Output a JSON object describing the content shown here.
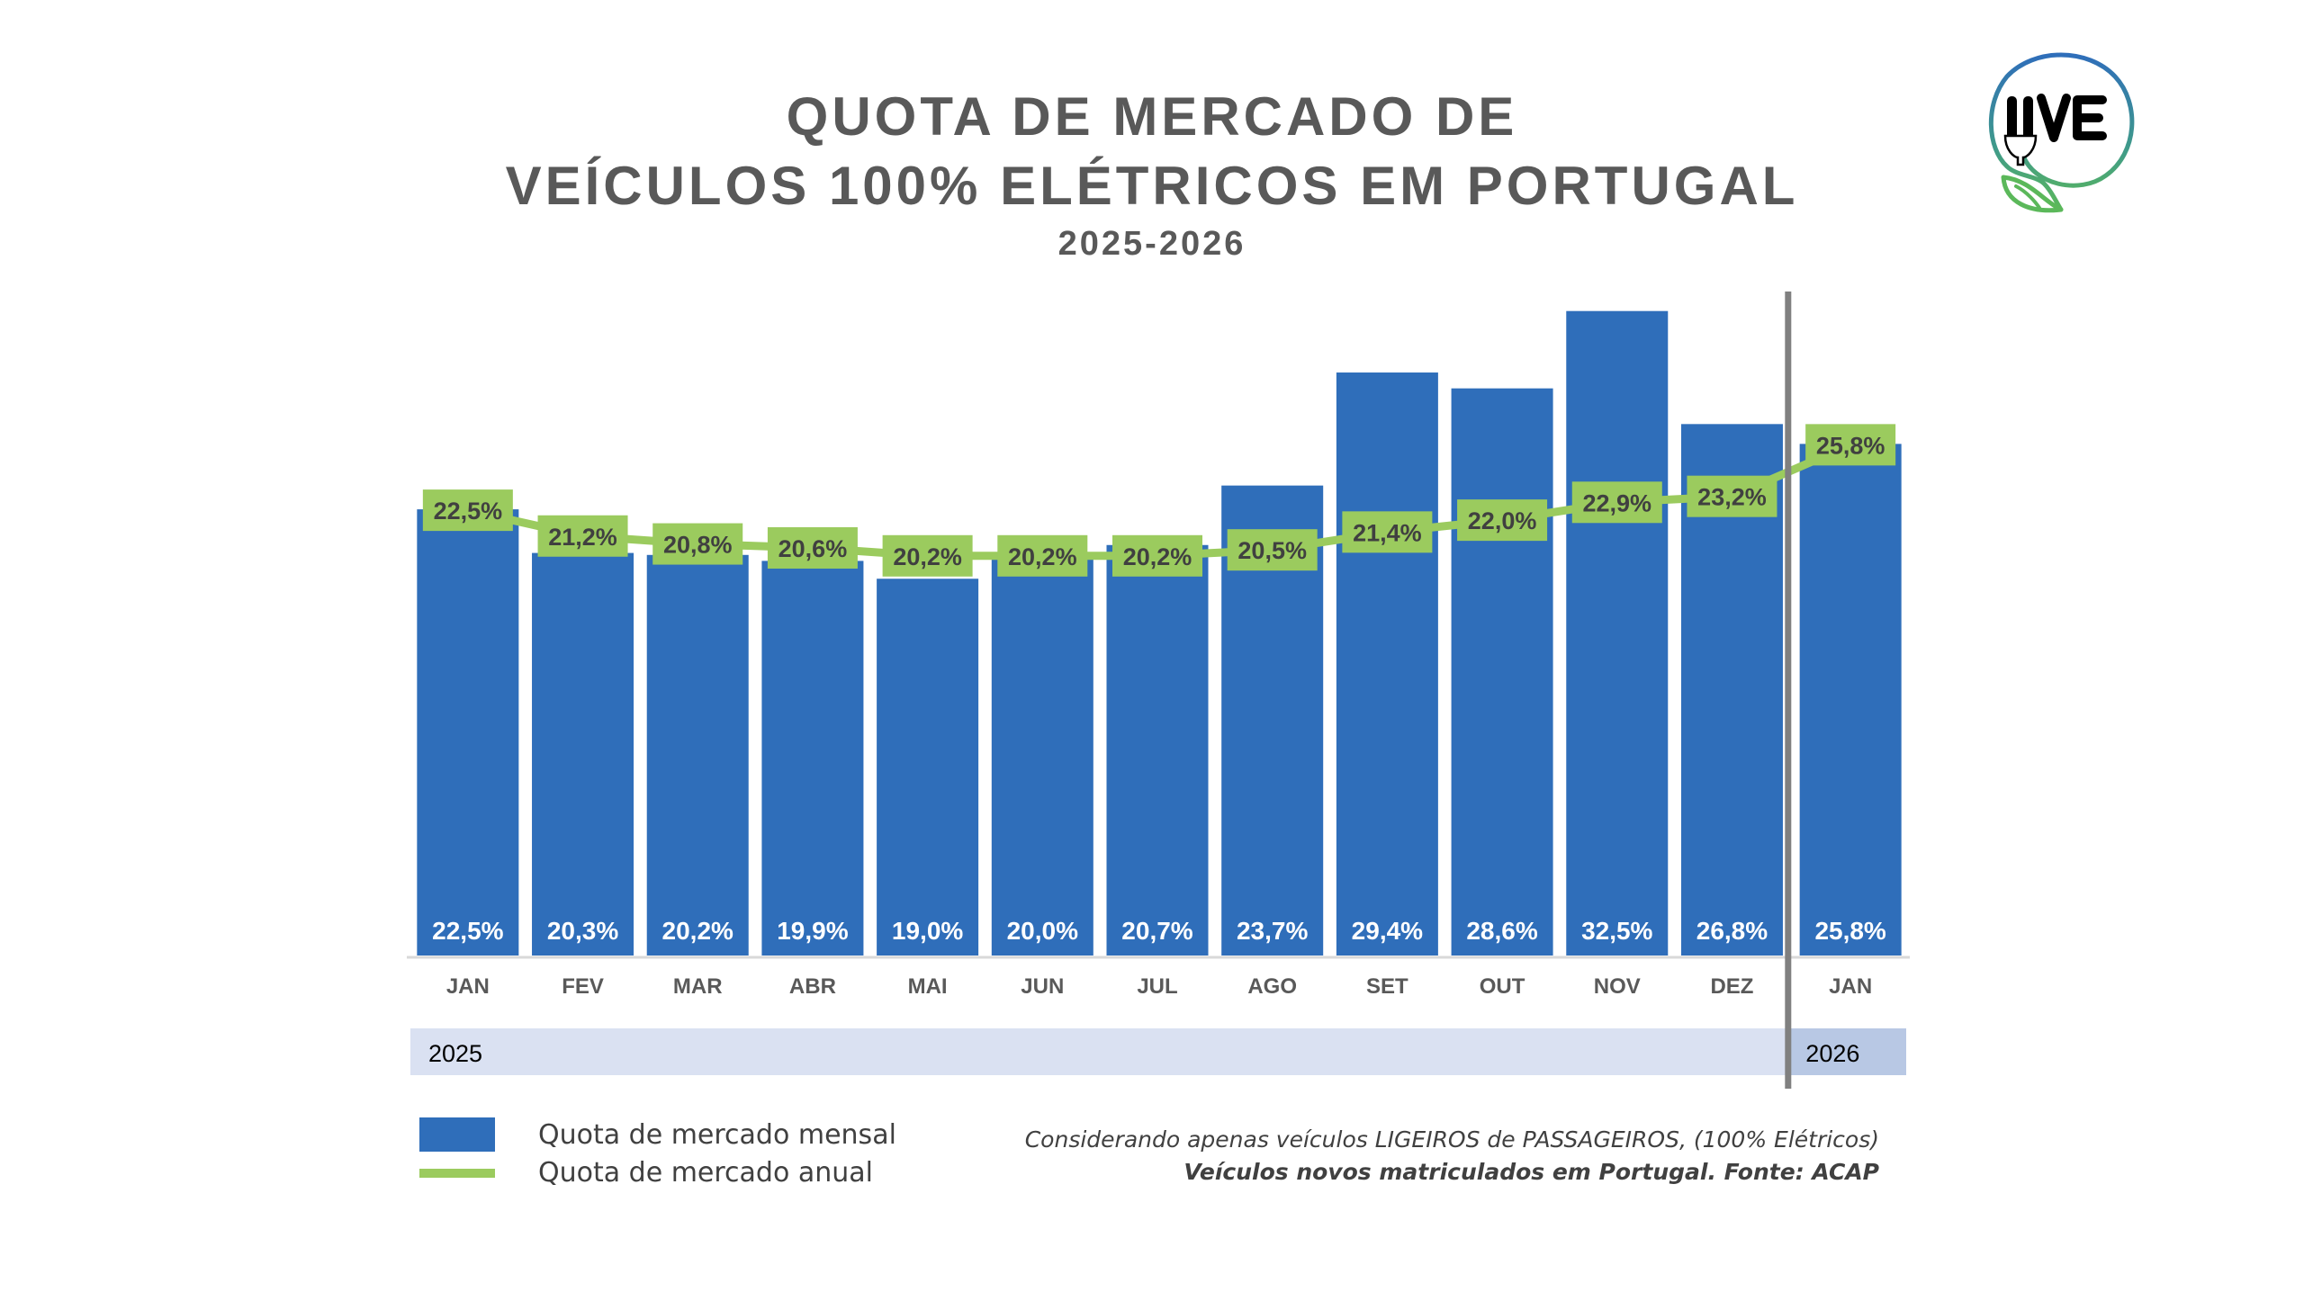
{
  "header": {
    "title_line1": "QUOTA DE MERCADO DE",
    "title_line2": "VEÍCULOS 100% ELÉTRICOS EM PORTUGAL",
    "subtitle": "2025-2026"
  },
  "logo": {
    "text": "UVE",
    "icon": "plug-leaf-logo"
  },
  "colors": {
    "bar": "#2F6EBA",
    "line": "#9BCB5E",
    "title_text": "#595959",
    "label_text": "#404040",
    "year_band_2025": "#DAE1F2",
    "year_band_2026": "#B8C8E4",
    "divider": "#808080"
  },
  "chart_data": {
    "type": "bar",
    "title": "QUOTA DE MERCADO DE VEÍCULOS 100% ELÉTRICOS EM PORTUGAL",
    "subtitle": "2025-2026",
    "xlabel": "",
    "ylabel": "",
    "ylim": [
      0,
      35
    ],
    "grid": false,
    "categories": [
      "JAN",
      "FEV",
      "MAR",
      "ABR",
      "MAI",
      "JUN",
      "JUL",
      "AGO",
      "SET",
      "OUT",
      "NOV",
      "DEZ",
      "JAN"
    ],
    "year_groups": [
      {
        "label": "2025",
        "start": 0,
        "end": 11
      },
      {
        "label": "2026",
        "start": 12,
        "end": 12
      }
    ],
    "series": [
      {
        "name": "Quota de mercado mensal",
        "type": "bar",
        "values": [
          22.5,
          20.3,
          20.2,
          19.9,
          19.0,
          20.0,
          20.7,
          23.7,
          29.4,
          28.6,
          32.5,
          26.8,
          25.8
        ],
        "labels": [
          "22,5%",
          "20,3%",
          "20,2%",
          "19,9%",
          "19,0%",
          "20,0%",
          "20,7%",
          "23,7%",
          "29,4%",
          "28,6%",
          "32,5%",
          "26,8%",
          "25,8%"
        ]
      },
      {
        "name": "Quota de mercado anual",
        "type": "line",
        "values": [
          22.5,
          21.2,
          20.8,
          20.6,
          20.2,
          20.2,
          20.2,
          20.5,
          21.4,
          22.0,
          22.9,
          23.2,
          25.8
        ],
        "labels": [
          "22,5%",
          "21,2%",
          "20,8%",
          "20,6%",
          "20,2%",
          "20,2%",
          "20,2%",
          "20,5%",
          "21,4%",
          "22,0%",
          "22,9%",
          "23,2%",
          "25,8%"
        ]
      }
    ],
    "legend": {
      "placement": "bottom-left",
      "items": [
        {
          "label": "Quota de mercado mensal",
          "marker": "square"
        },
        {
          "label": "Quota de mercado anual",
          "marker": "line"
        }
      ]
    },
    "annotations": [
      "Considerando apenas veículos LIGEIROS de PASSAGEIROS, (100% Elétricos)",
      "Veículos novos matriculados em Portugal. Fonte: ACAP"
    ]
  },
  "footer": {
    "note_line1": "Considerando apenas veículos LIGEIROS de PASSAGEIROS, (100% Elétricos)",
    "note_line2": "Veículos novos matriculados em Portugal. Fonte: ACAP"
  }
}
